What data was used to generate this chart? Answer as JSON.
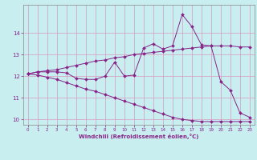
{
  "title": "",
  "xlabel": "Windchill (Refroidissement éolien,°C)",
  "background_color": "#c8eef0",
  "grid_color": "#d898c0",
  "line_color": "#882288",
  "x": [
    0,
    1,
    2,
    3,
    4,
    5,
    6,
    7,
    8,
    9,
    10,
    11,
    12,
    13,
    14,
    15,
    16,
    17,
    18,
    19,
    20,
    21,
    22,
    23
  ],
  "line1": [
    12.1,
    12.2,
    12.2,
    12.2,
    12.15,
    11.9,
    11.85,
    11.85,
    12.0,
    12.65,
    12.0,
    12.05,
    13.3,
    13.5,
    13.25,
    13.4,
    14.85,
    14.3,
    13.45,
    13.4,
    11.75,
    11.35,
    10.3,
    10.1
  ],
  "line2": [
    12.1,
    12.2,
    12.25,
    12.3,
    12.4,
    12.5,
    12.6,
    12.7,
    12.75,
    12.85,
    12.9,
    13.0,
    13.05,
    13.1,
    13.15,
    13.2,
    13.25,
    13.3,
    13.35,
    13.4,
    13.4,
    13.4,
    13.35,
    13.35
  ],
  "line3": [
    12.1,
    12.05,
    11.95,
    11.85,
    11.7,
    11.55,
    11.4,
    11.3,
    11.15,
    11.0,
    10.85,
    10.7,
    10.55,
    10.4,
    10.25,
    10.1,
    10.0,
    9.95,
    9.9,
    9.9,
    9.9,
    9.9,
    9.9,
    9.9
  ],
  "ylim": [
    9.75,
    15.3
  ],
  "yticks": [
    10,
    11,
    12,
    13,
    14
  ],
  "xticks": [
    0,
    1,
    2,
    3,
    4,
    5,
    6,
    7,
    8,
    9,
    10,
    11,
    12,
    13,
    14,
    15,
    16,
    17,
    18,
    19,
    20,
    21,
    22,
    23
  ],
  "marker": "D",
  "markersize": 2.0,
  "linewidth": 0.7
}
